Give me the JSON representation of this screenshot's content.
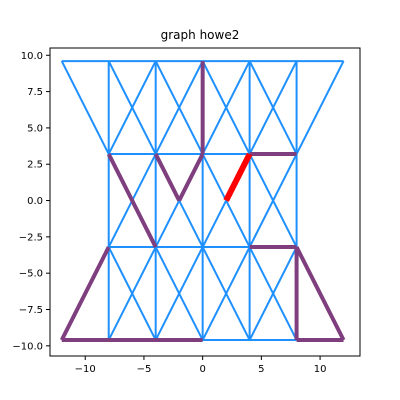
{
  "chart_data": {
    "type": "line",
    "title": "graph howe2",
    "xlabel": "",
    "ylabel": "",
    "xlim": [
      -13,
      13.4
    ],
    "ylim": [
      -10.7,
      10.5
    ],
    "xticks": [
      -10,
      -5,
      0,
      5,
      10
    ],
    "yticks": [
      10.0,
      7.5,
      5.0,
      2.5,
      0.0,
      -2.5,
      -5.0,
      -7.5,
      -10.0
    ],
    "colors": {
      "base": "#1e90ff",
      "path": "#7f3f7f",
      "highlight": "#ff0000"
    },
    "series": [
      {
        "role": "base",
        "segments": [
          [
            [
              -12,
              9.6
            ],
            [
              12,
              9.6
            ]
          ],
          [
            [
              -12,
              9.6
            ],
            [
              -8,
              3.2
            ]
          ],
          [
            [
              8,
              3.2
            ],
            [
              12,
              9.6
            ]
          ],
          [
            [
              -8,
              9.6
            ],
            [
              -8,
              -9.6
            ]
          ],
          [
            [
              -4,
              9.6
            ],
            [
              -4,
              -9.6
            ]
          ],
          [
            [
              0,
              9.6
            ],
            [
              0,
              -9.6
            ]
          ],
          [
            [
              4,
              9.6
            ],
            [
              4,
              -9.6
            ]
          ],
          [
            [
              8,
              9.6
            ],
            [
              8,
              -9.6
            ]
          ],
          [
            [
              -8,
              3.2
            ],
            [
              8,
              3.2
            ]
          ],
          [
            [
              -8,
              -3.2
            ],
            [
              8,
              -3.2
            ]
          ],
          [
            [
              -12,
              -9.6
            ],
            [
              8,
              -9.6
            ]
          ],
          [
            [
              -8,
              9.6
            ],
            [
              -4,
              3.2
            ]
          ],
          [
            [
              -4,
              9.6
            ],
            [
              -8,
              3.2
            ]
          ],
          [
            [
              -4,
              9.6
            ],
            [
              0,
              3.2
            ]
          ],
          [
            [
              0,
              9.6
            ],
            [
              -4,
              3.2
            ]
          ],
          [
            [
              0,
              9.6
            ],
            [
              4,
              3.2
            ]
          ],
          [
            [
              4,
              9.6
            ],
            [
              0,
              3.2
            ]
          ],
          [
            [
              4,
              9.6
            ],
            [
              8,
              3.2
            ]
          ],
          [
            [
              8,
              9.6
            ],
            [
              4,
              3.2
            ]
          ],
          [
            [
              -8,
              3.2
            ],
            [
              -4,
              -3.2
            ]
          ],
          [
            [
              -4,
              3.2
            ],
            [
              -8,
              -3.2
            ]
          ],
          [
            [
              -4,
              3.2
            ],
            [
              0,
              -3.2
            ]
          ],
          [
            [
              0,
              3.2
            ],
            [
              -4,
              -3.2
            ]
          ],
          [
            [
              0,
              3.2
            ],
            [
              4,
              -3.2
            ]
          ],
          [
            [
              4,
              3.2
            ],
            [
              0,
              -3.2
            ]
          ],
          [
            [
              4,
              3.2
            ],
            [
              8,
              -3.2
            ]
          ],
          [
            [
              8,
              3.2
            ],
            [
              4,
              -3.2
            ]
          ],
          [
            [
              -8,
              -3.2
            ],
            [
              -4,
              -9.6
            ]
          ],
          [
            [
              -4,
              -3.2
            ],
            [
              -8,
              -9.6
            ]
          ],
          [
            [
              -4,
              -3.2
            ],
            [
              0,
              -9.6
            ]
          ],
          [
            [
              0,
              -3.2
            ],
            [
              -4,
              -9.6
            ]
          ],
          [
            [
              0,
              -3.2
            ],
            [
              4,
              -9.6
            ]
          ],
          [
            [
              4,
              -3.2
            ],
            [
              0,
              -9.6
            ]
          ],
          [
            [
              4,
              -3.2
            ],
            [
              8,
              -9.6
            ]
          ],
          [
            [
              8,
              -3.2
            ],
            [
              4,
              -9.6
            ]
          ]
        ]
      },
      {
        "role": "path",
        "segments": [
          [
            [
              0,
              9.6
            ],
            [
              0,
              3.2
            ]
          ],
          [
            [
              0,
              3.2
            ],
            [
              -2,
              0
            ]
          ],
          [
            [
              -2,
              0
            ],
            [
              -4,
              3.2
            ]
          ],
          [
            [
              -8,
              3.2
            ],
            [
              -4,
              -3.2
            ]
          ],
          [
            [
              -8,
              -3.2
            ],
            [
              -12,
              -9.6
            ]
          ],
          [
            [
              -12,
              -9.6
            ],
            [
              0,
              -9.6
            ]
          ],
          [
            [
              4,
              3.2
            ],
            [
              8,
              3.2
            ]
          ],
          [
            [
              4,
              -3.2
            ],
            [
              8,
              -3.2
            ]
          ],
          [
            [
              8,
              -3.2
            ],
            [
              8,
              -9.6
            ]
          ],
          [
            [
              8,
              -9.6
            ],
            [
              12,
              -9.6
            ]
          ],
          [
            [
              12,
              -9.6
            ],
            [
              8,
              -3.2
            ]
          ]
        ]
      },
      {
        "role": "highlight",
        "segments": [
          [
            [
              2,
              0
            ],
            [
              4,
              3.2
            ]
          ]
        ]
      }
    ]
  }
}
